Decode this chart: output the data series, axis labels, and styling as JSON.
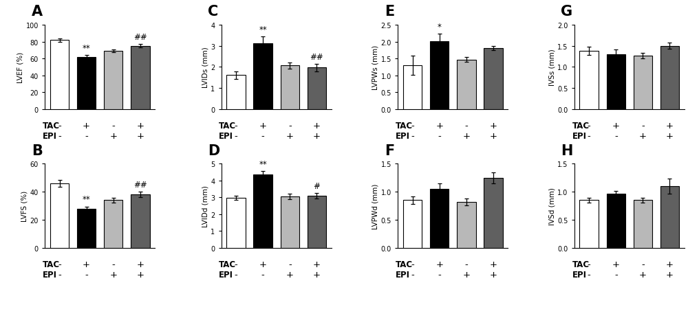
{
  "panels": [
    {
      "label": "A",
      "ylabel": "LVEF (%)",
      "ylim": [
        0,
        100
      ],
      "yticks": [
        0,
        20,
        40,
        60,
        80,
        100
      ],
      "values": [
        82,
        62,
        69,
        75
      ],
      "errors": [
        2,
        2,
        1.5,
        2
      ],
      "sig_above": [
        "",
        "**",
        "",
        "##"
      ],
      "row": 0,
      "col": 0
    },
    {
      "label": "B",
      "ylabel": "LVFS (%)",
      "ylim": [
        0,
        60
      ],
      "yticks": [
        0,
        20,
        40,
        60
      ],
      "values": [
        46,
        28,
        34,
        38
      ],
      "errors": [
        2.5,
        1.5,
        1.5,
        2
      ],
      "sig_above": [
        "",
        "**",
        "",
        "##"
      ],
      "row": 1,
      "col": 0
    },
    {
      "label": "C",
      "ylabel": "LVIDs (mm)",
      "ylim": [
        0,
        4.0
      ],
      "yticks": [
        0.0,
        1.0,
        2.0,
        3.0,
        4.0
      ],
      "values": [
        1.62,
        3.13,
        2.07,
        1.97
      ],
      "errors": [
        0.18,
        0.32,
        0.15,
        0.18
      ],
      "sig_above": [
        "",
        "**",
        "",
        "##"
      ],
      "row": 0,
      "col": 1
    },
    {
      "label": "D",
      "ylabel": "LVIDd (mm)",
      "ylim": [
        0,
        5.0
      ],
      "yticks": [
        0.0,
        1.0,
        2.0,
        3.0,
        4.0,
        5.0
      ],
      "values": [
        2.97,
        4.35,
        3.05,
        3.1
      ],
      "errors": [
        0.12,
        0.22,
        0.15,
        0.15
      ],
      "sig_above": [
        "",
        "**",
        "",
        "#"
      ],
      "row": 1,
      "col": 1
    },
    {
      "label": "E",
      "ylabel": "LVPWs (mm)",
      "ylim": [
        0,
        2.5
      ],
      "yticks": [
        0.0,
        0.5,
        1.0,
        1.5,
        2.0,
        2.5
      ],
      "values": [
        1.3,
        2.01,
        1.47,
        1.8
      ],
      "errors": [
        0.28,
        0.22,
        0.07,
        0.06
      ],
      "sig_above": [
        "",
        "*",
        "",
        ""
      ],
      "row": 0,
      "col": 2
    },
    {
      "label": "F",
      "ylabel": "LVPWd (mm)",
      "ylim": [
        0,
        1.5
      ],
      "yticks": [
        0.0,
        0.5,
        1.0,
        1.5
      ],
      "values": [
        0.85,
        1.05,
        0.82,
        1.25
      ],
      "errors": [
        0.07,
        0.1,
        0.06,
        0.1
      ],
      "sig_above": [
        "",
        "",
        "",
        ""
      ],
      "row": 1,
      "col": 2
    },
    {
      "label": "G",
      "ylabel": "IVSs (mm)",
      "ylim": [
        0,
        2.0
      ],
      "yticks": [
        0.0,
        0.5,
        1.0,
        1.5,
        2.0
      ],
      "values": [
        1.38,
        1.3,
        1.27,
        1.5
      ],
      "errors": [
        0.1,
        0.12,
        0.07,
        0.07
      ],
      "sig_above": [
        "",
        "",
        "",
        ""
      ],
      "row": 0,
      "col": 3
    },
    {
      "label": "H",
      "ylabel": "IVSd (mm)",
      "ylim": [
        0,
        1.5
      ],
      "yticks": [
        0.0,
        0.5,
        1.0,
        1.5
      ],
      "values": [
        0.85,
        0.97,
        0.85,
        1.1
      ],
      "errors": [
        0.04,
        0.05,
        0.04,
        0.13
      ],
      "sig_above": [
        "",
        "",
        "",
        ""
      ],
      "row": 1,
      "col": 3
    }
  ],
  "bar_colors": [
    "#ffffff",
    "#000000",
    "#b8b8b8",
    "#606060"
  ],
  "bar_edgecolor": "#000000",
  "tac_labels": [
    "-",
    "+",
    "-",
    "+"
  ],
  "epi_labels": [
    "-",
    "-",
    "+",
    "+"
  ],
  "background_color": "#ffffff",
  "tick_fontsize": 7.0,
  "axis_label_fontsize": 7.5,
  "sig_fontsize": 8.5,
  "panel_label_fontsize": 15,
  "tac_epi_label_fontsize": 8.5,
  "tac_epi_val_fontsize": 9.5
}
